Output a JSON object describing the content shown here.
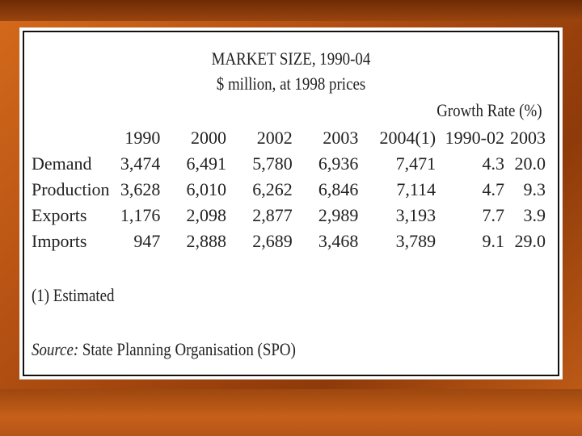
{
  "slide": {
    "title": "MARKET SIZE, 1990-04",
    "subtitle": "$ million, at 1998 prices",
    "growth_header": "Growth Rate (%)",
    "columns": [
      "",
      "1990",
      "2000",
      "2002",
      "2003",
      "2004(1)",
      "1990-02",
      "2003"
    ],
    "rows": [
      {
        "label": "Demand",
        "values": [
          "3,474",
          "6,491",
          "5,780",
          "6,936",
          "7,471",
          "4.3",
          "20.0"
        ]
      },
      {
        "label": "Production",
        "values": [
          "3,628",
          "6,010",
          "6,262",
          "6,846",
          "7,114",
          "4.7",
          "9.3"
        ]
      },
      {
        "label": "Exports",
        "values": [
          "1,176",
          "2,098",
          "2,877",
          "2,989",
          "3,193",
          "7.7",
          "3.9"
        ]
      },
      {
        "label": "Imports",
        "values": [
          "947",
          "2,888",
          "2,689",
          "3,468",
          "3,789",
          "9.1",
          "29.0"
        ]
      }
    ],
    "footnote": "(1) Estimated",
    "source_label": "Source:",
    "source_text": " State Planning Organisation (SPO)"
  }
}
